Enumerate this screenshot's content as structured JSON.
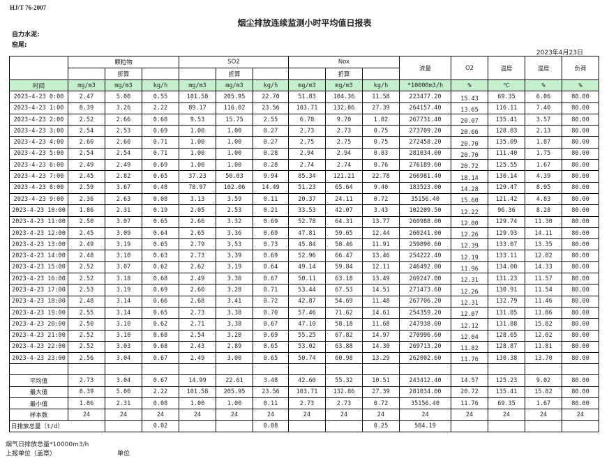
{
  "standard": "HJ/T  76-2007",
  "title": "烟尘排放连续监测小时平均值日报表",
  "company_label": "自力水泥:",
  "kiln_label": "窑尾:",
  "date": "2023年4月23日",
  "header": {
    "groups": [
      "颗粒物",
      "SO2",
      "Nox"
    ],
    "converted": "折算",
    "flow": "流量",
    "o2": "O2",
    "temperature": "温度",
    "humidity": "湿度",
    "load": "负荷",
    "units": [
      "时间",
      "mg/m3",
      "mg/m3",
      "kg/h",
      "mg/m3",
      "mg/m3",
      "kg/h",
      "mg/m3",
      "mg/m3",
      "kg/h",
      "*10000m3/h",
      "%",
      "℃",
      "%",
      "%"
    ]
  },
  "rows": [
    [
      "2023-4-23 0:00",
      "2.47",
      "5.00",
      "0.55",
      "101.58",
      "205.95",
      "22.70",
      "51.83",
      "104.36",
      "11.58",
      "223477.20",
      "15.43",
      "69.35",
      "6.06",
      "80.00"
    ],
    [
      "2023-4-23 1:00",
      "8.39",
      "3.26",
      "2.22",
      "89.17",
      "116.02",
      "23.56",
      "103.71",
      "132.86",
      "27.39",
      "264157.40",
      "13.65",
      "116.11",
      "7.40",
      "80.00"
    ],
    [
      "2023-4-23 2:00",
      "2.52",
      "2.66",
      "0.68",
      "9.53",
      "15.75",
      "2.55",
      "6.78",
      "9.70",
      "1.82",
      "267731.40",
      "20.07",
      "135.41",
      "3.57",
      "80.00"
    ],
    [
      "2023-4-23 3:00",
      "2.54",
      "2.53",
      "0.69",
      "1.00",
      "1.00",
      "0.27",
      "2.73",
      "2.73",
      "0.75",
      "273709.20",
      "20.66",
      "128.83",
      "2.13",
      "80.00"
    ],
    [
      "2023-4-23 4:00",
      "2.60",
      "2.60",
      "0.71",
      "1.00",
      "1.00",
      "0.27",
      "2.75",
      "2.75",
      "0.75",
      "272458.20",
      "20.70",
      "135.09",
      "1.87",
      "80.00"
    ],
    [
      "2023-4-23 5:00",
      "2.54",
      "2.54",
      "0.71",
      "1.00",
      "1.00",
      "0.28",
      "2.94",
      "2.94",
      "0.83",
      "281034.00",
      "20.70",
      "111.40",
      "1.75",
      "80.00"
    ],
    [
      "2023-4-23 6:00",
      "2.49",
      "2.49",
      "0.69",
      "1.00",
      "1.00",
      "0.28",
      "2.74",
      "2.74",
      "0.76",
      "276189.60",
      "20.72",
      "125.55",
      "1.67",
      "80.00"
    ],
    [
      "2023-4-23 7:00",
      "2.45",
      "2.82",
      "0.65",
      "37.23",
      "50.03",
      "9.94",
      "85.34",
      "121.21",
      "22.78",
      "266981.40",
      "18.14",
      "130.14",
      "4.39",
      "80.00"
    ],
    [
      "2023-4-23 8:00",
      "2.59",
      "3.67",
      "0.48",
      "78.97",
      "102.06",
      "14.49",
      "51.23",
      "65.64",
      "9.40",
      "183523.00",
      "14.28",
      "129.47",
      "8.95",
      "80.00"
    ],
    [
      "2023-4-23 9:00",
      "2.36",
      "2.63",
      "0.08",
      "3.13",
      "3.59",
      "0.11",
      "20.37",
      "24.11",
      "0.72",
      "35156.40",
      "15.60",
      "121.42",
      "4.83",
      "80.00"
    ],
    [
      "2023-4-23 10:00",
      "1.86",
      "2.31",
      "0.19",
      "2.05",
      "2.53",
      "0.21",
      "33.53",
      "42.07",
      "3.43",
      "102209.50",
      "12.22",
      "96.36",
      "8.28",
      "80.00"
    ],
    [
      "2023-4-23 11:00",
      "2.50",
      "3.07",
      "0.65",
      "2.66",
      "3.32",
      "0.69",
      "52.78",
      "64.31",
      "13.77",
      "260988.00",
      "12.00",
      "129.74",
      "11.30",
      "80.00"
    ],
    [
      "2023-4-23 12:00",
      "2.45",
      "3.09",
      "0.64",
      "2.65",
      "3.36",
      "0.69",
      "47.81",
      "59.65",
      "12.44",
      "260241.00",
      "12.26",
      "129.93",
      "14.11",
      "80.00"
    ],
    [
      "2023-4-23 13:00",
      "2.49",
      "3.19",
      "0.65",
      "2.79",
      "3.53",
      "0.73",
      "45.84",
      "58.46",
      "11.91",
      "259890.60",
      "12.39",
      "133.07",
      "13.35",
      "80.00"
    ],
    [
      "2023-4-23 14:00",
      "2.48",
      "3.10",
      "0.63",
      "2.73",
      "3.39",
      "0.69",
      "52.96",
      "66.47",
      "13.46",
      "254222.40",
      "12.19",
      "133.11",
      "12.82",
      "80.00"
    ],
    [
      "2023-4-23 15:00",
      "2.52",
      "3.07",
      "0.62",
      "2.62",
      "3.19",
      "0.64",
      "49.14",
      "59.84",
      "12.11",
      "246492.00",
      "11.96",
      "134.00",
      "14.33",
      "80.00"
    ],
    [
      "2023-4-23 16:00",
      "2.52",
      "3.18",
      "0.68",
      "2.49",
      "3.30",
      "0.67",
      "50.11",
      "63.18",
      "13.49",
      "269247.00",
      "12.31",
      "131.23",
      "11.57",
      "80.00"
    ],
    [
      "2023-4-23 17:00",
      "2.53",
      "3.19",
      "0.69",
      "2.60",
      "3.28",
      "0.71",
      "53.44",
      "67.53",
      "14.51",
      "271473.60",
      "12.26",
      "130.91",
      "11.54",
      "80.00"
    ],
    [
      "2023-4-23 18:00",
      "2.48",
      "3.14",
      "0.66",
      "2.68",
      "3.41",
      "0.72",
      "42.87",
      "54.69",
      "11.48",
      "267706.20",
      "12.31",
      "132.79",
      "11.46",
      "80.00"
    ],
    [
      "2023-4-23 19:00",
      "2.55",
      "3.14",
      "0.65",
      "2.73",
      "3.38",
      "0.70",
      "57.46",
      "71.62",
      "14.61",
      "254359.20",
      "12.07",
      "131.85",
      "11.86",
      "80.00"
    ],
    [
      "2023-4-23 20:00",
      "2.50",
      "3.10",
      "0.62",
      "2.71",
      "3.38",
      "0.67",
      "47.10",
      "58.18",
      "11.68",
      "247938.00",
      "12.12",
      "131.88",
      "15.82",
      "80.00"
    ],
    [
      "2023-4-23 21:00",
      "2.52",
      "3.10",
      "0.68",
      "2.54",
      "3.20",
      "0.69",
      "55.25",
      "67.82",
      "14.97",
      "270996.60",
      "12.04",
      "128.65",
      "12.02",
      "80.00"
    ],
    [
      "2023-4-23 22:00",
      "2.52",
      "3.03",
      "0.68",
      "2.43",
      "2.89",
      "0.65",
      "53.02",
      "63.88",
      "14.30",
      "269713.20",
      "11.82",
      "128.87",
      "11.81",
      "80.00"
    ],
    [
      "2023-4-23 23:00",
      "2.56",
      "3.04",
      "0.67",
      "2.49",
      "3.00",
      "0.65",
      "50.74",
      "60.98",
      "13.29",
      "262002.60",
      "11.76",
      "130.38",
      "13.70",
      "80.00"
    ]
  ],
  "summary": [
    [
      "平均值",
      "2.73",
      "3.04",
      "0.67",
      "14.99",
      "22.61",
      "3.48",
      "42.60",
      "55.32",
      "10.51",
      "243412.40",
      "14.57",
      "125.23",
      "9.02",
      "80.00"
    ],
    [
      "最大值",
      "8.39",
      "5.00",
      "2.22",
      "101.58",
      "205.95",
      "23.56",
      "103.71",
      "132.86",
      "27.39",
      "281034.00",
      "20.72",
      "135.41",
      "15.82",
      "80.00"
    ],
    [
      "最小值",
      "1.86",
      "2.31",
      "0.08",
      "1.00",
      "1.00",
      "0.11",
      "2.73",
      "2.73",
      "0.72",
      "35156.40",
      "11.76",
      "69.35",
      "1.67",
      "80.00"
    ],
    [
      "样本数",
      "24",
      "24",
      "24",
      "24",
      "24",
      "24",
      "24",
      "24",
      "24",
      "24",
      "24",
      "24",
      "24",
      "24"
    ]
  ],
  "daily_total": {
    "label": "日排放总量（t/d）",
    "values": [
      "",
      "0.02",
      "",
      "",
      "0.08",
      "",
      "",
      "0.25",
      "584.19",
      "",
      "",
      "",
      ""
    ]
  },
  "footer": {
    "flue_gas_total": "烟气日排放总量*10000m3/h",
    "reporting_unit": "上报单位（盖章）",
    "unit": "单位"
  }
}
